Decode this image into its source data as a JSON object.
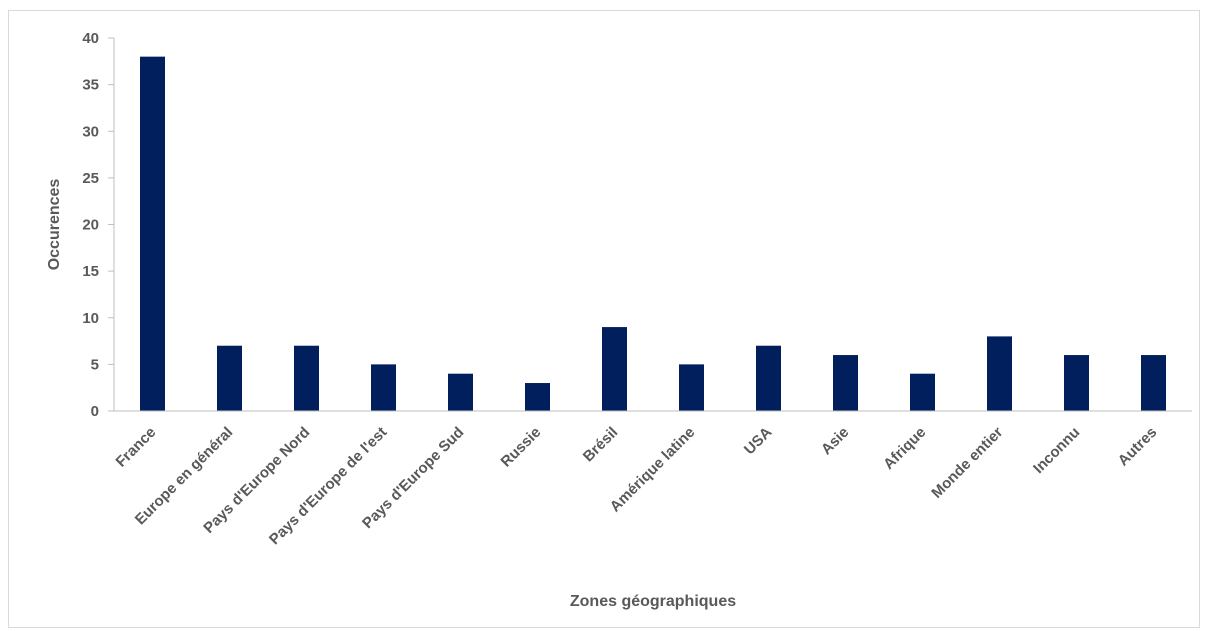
{
  "chart_data": {
    "type": "bar",
    "categories": [
      "France",
      "Europe en général",
      "Pays d'Europe Nord",
      "Pays d'Europe de l'est",
      "Pays d'Europe Sud",
      "Russie",
      "Brésil",
      "Amérique latine",
      "USA",
      "Asie",
      "Afrique",
      "Monde entier",
      "Inconnu",
      "Autres"
    ],
    "values": [
      38,
      7,
      7,
      5,
      4,
      3,
      9,
      5,
      7,
      6,
      4,
      8,
      6,
      6
    ],
    "title": "",
    "xlabel": "Zones géographiques",
    "ylabel": "Occurences",
    "ylim": [
      0,
      40
    ],
    "yticks": [
      "0",
      "5",
      "10",
      "15",
      "20",
      "25",
      "30",
      "35",
      "40"
    ],
    "grid": false,
    "legend": "none",
    "bar_color": "#001f5c",
    "axis_color": "#bfbfbf",
    "text_color": "#595959"
  }
}
